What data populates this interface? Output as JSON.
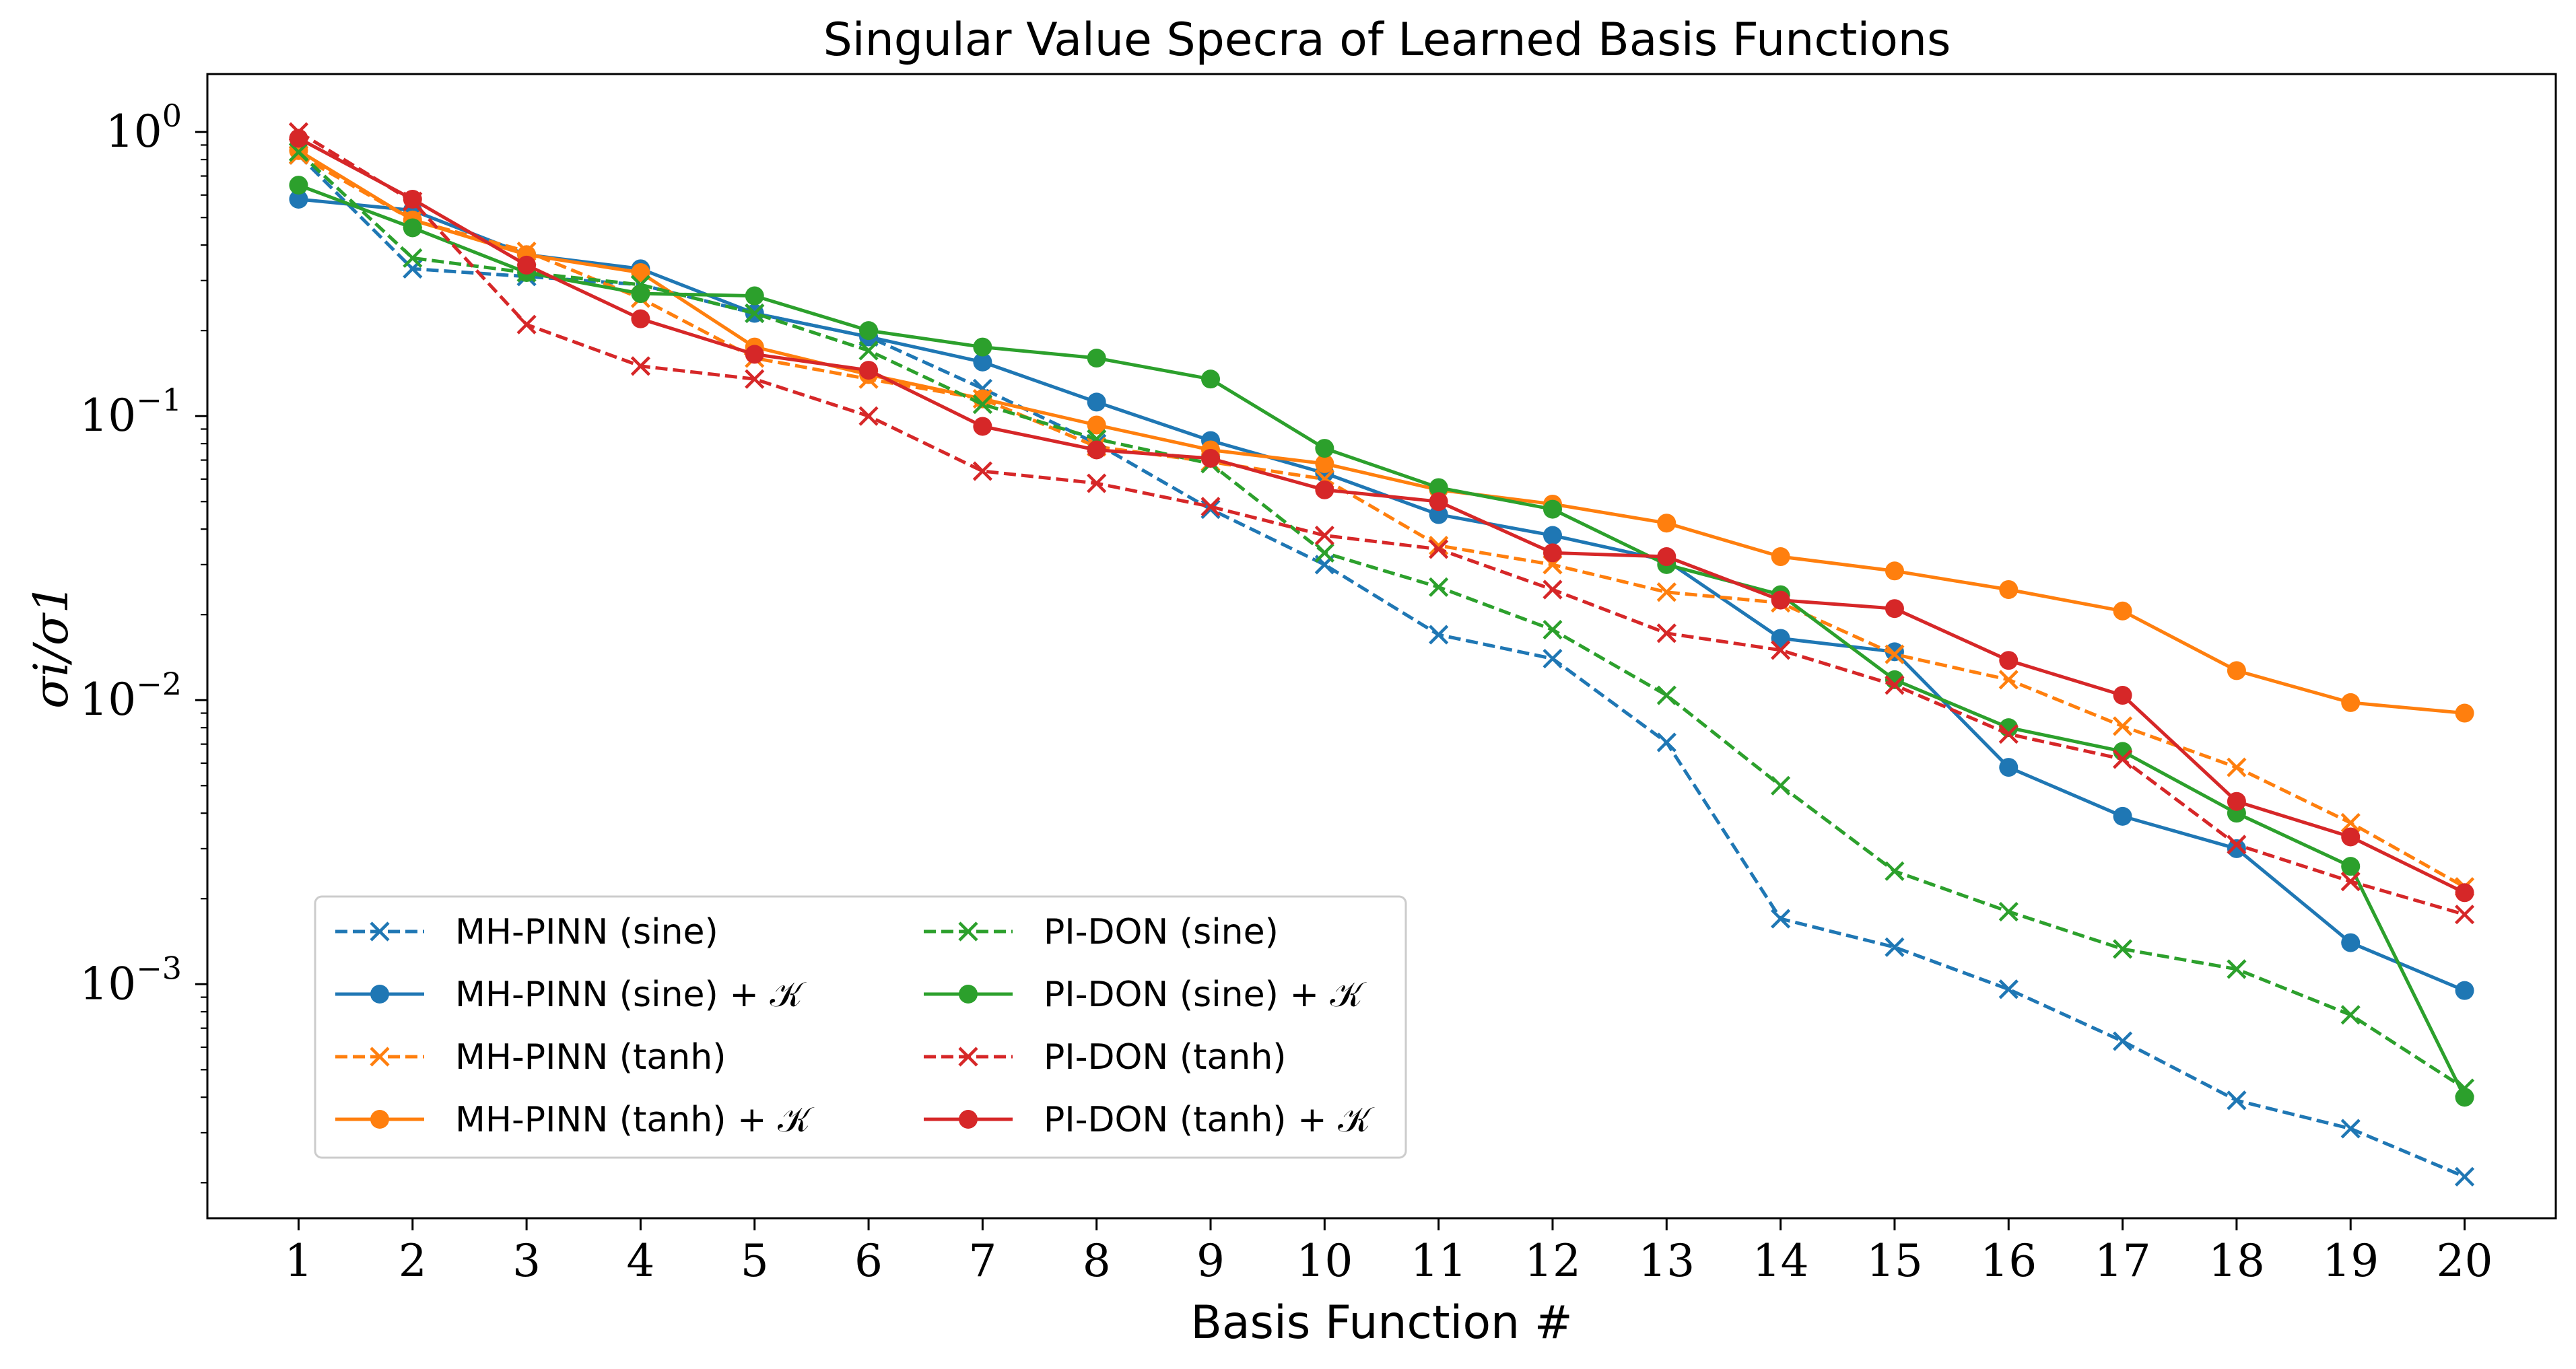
{
  "chart_data": {
    "type": "line",
    "title": "Singular Value Specra of Learned Basis Functions",
    "xlabel": "Basis Function #",
    "ylabel": "σi/σ1",
    "yscale": "log",
    "ylim": [
      0.00015,
      1.6
    ],
    "xlim": [
      0.2,
      20.8
    ],
    "x": [
      1,
      2,
      3,
      4,
      5,
      6,
      7,
      8,
      9,
      10,
      11,
      12,
      13,
      14,
      15,
      16,
      17,
      18,
      19,
      20
    ],
    "x_ticks": [
      "1",
      "2",
      "3",
      "4",
      "5",
      "6",
      "7",
      "8",
      "9",
      "10",
      "11",
      "12",
      "13",
      "14",
      "15",
      "16",
      "17",
      "18",
      "19",
      "20"
    ],
    "y_ticks": [
      {
        "value": 1,
        "base": "10",
        "exp": "0"
      },
      {
        "value": 0.1,
        "base": "10",
        "exp": "−1"
      },
      {
        "value": 0.01,
        "base": "10",
        "exp": "−2"
      },
      {
        "value": 0.001,
        "base": "10",
        "exp": "−3"
      }
    ],
    "grid": false,
    "legend_position": "lower-left",
    "legend_columns": 2,
    "series": [
      {
        "name": "MH-PINN (sine)",
        "color": "#1f77b4",
        "dashed": true,
        "marker": "x",
        "values": [
          0.83,
          0.33,
          0.31,
          0.29,
          0.23,
          0.19,
          0.125,
          0.08,
          0.047,
          0.03,
          0.017,
          0.014,
          0.0071,
          0.0017,
          0.00135,
          0.00096,
          0.00063,
          0.00039,
          0.00031,
          0.00021
        ]
      },
      {
        "name": "MH-PINN (sine) + 𝒦",
        "color": "#1f77b4",
        "dashed": false,
        "marker": "o",
        "values": [
          0.58,
          0.53,
          0.37,
          0.33,
          0.23,
          0.19,
          0.155,
          0.112,
          0.082,
          0.063,
          0.045,
          0.038,
          0.031,
          0.0165,
          0.0148,
          0.0058,
          0.0039,
          0.003,
          0.0014,
          0.00095
        ]
      },
      {
        "name": "MH-PINN (tanh)",
        "color": "#ff7f0e",
        "dashed": true,
        "marker": "x",
        "values": [
          0.83,
          0.49,
          0.38,
          0.26,
          0.16,
          0.135,
          0.115,
          0.078,
          0.069,
          0.06,
          0.035,
          0.03,
          0.024,
          0.022,
          0.0145,
          0.0118,
          0.0081,
          0.0058,
          0.0037,
          0.0022
        ]
      },
      {
        "name": "MH-PINN (tanh) + 𝒦",
        "color": "#ff7f0e",
        "dashed": false,
        "marker": "o",
        "values": [
          0.86,
          0.49,
          0.37,
          0.32,
          0.175,
          0.14,
          0.115,
          0.093,
          0.076,
          0.068,
          0.055,
          0.049,
          0.042,
          0.032,
          0.0285,
          0.0245,
          0.0206,
          0.0127,
          0.0098,
          0.009
        ]
      },
      {
        "name": "PI-DON (sine)",
        "color": "#2ca02c",
        "dashed": true,
        "marker": "x",
        "values": [
          0.85,
          0.36,
          0.32,
          0.29,
          0.23,
          0.17,
          0.11,
          0.083,
          0.068,
          0.033,
          0.025,
          0.0177,
          0.0104,
          0.005,
          0.0025,
          0.0018,
          0.00133,
          0.00113,
          0.00078,
          0.00043
        ]
      },
      {
        "name": "PI-DON (sine) + 𝒦",
        "color": "#2ca02c",
        "dashed": false,
        "marker": "o",
        "values": [
          0.65,
          0.46,
          0.32,
          0.27,
          0.265,
          0.2,
          0.175,
          0.16,
          0.135,
          0.077,
          0.056,
          0.047,
          0.03,
          0.0235,
          0.0118,
          0.008,
          0.0066,
          0.004,
          0.0026,
          0.0004
        ]
      },
      {
        "name": "PI-DON (tanh)",
        "color": "#d62728",
        "dashed": true,
        "marker": "x",
        "values": [
          1.0,
          0.57,
          0.21,
          0.15,
          0.135,
          0.1,
          0.064,
          0.058,
          0.048,
          0.038,
          0.034,
          0.0245,
          0.0172,
          0.015,
          0.0113,
          0.0076,
          0.0062,
          0.0031,
          0.0023,
          0.00176
        ]
      },
      {
        "name": "PI-DON (tanh) + 𝒦",
        "color": "#d62728",
        "dashed": false,
        "marker": "o",
        "values": [
          0.95,
          0.58,
          0.34,
          0.22,
          0.165,
          0.145,
          0.092,
          0.076,
          0.071,
          0.055,
          0.05,
          0.033,
          0.032,
          0.0225,
          0.021,
          0.0138,
          0.0104,
          0.0044,
          0.0033,
          0.0021
        ]
      }
    ]
  }
}
